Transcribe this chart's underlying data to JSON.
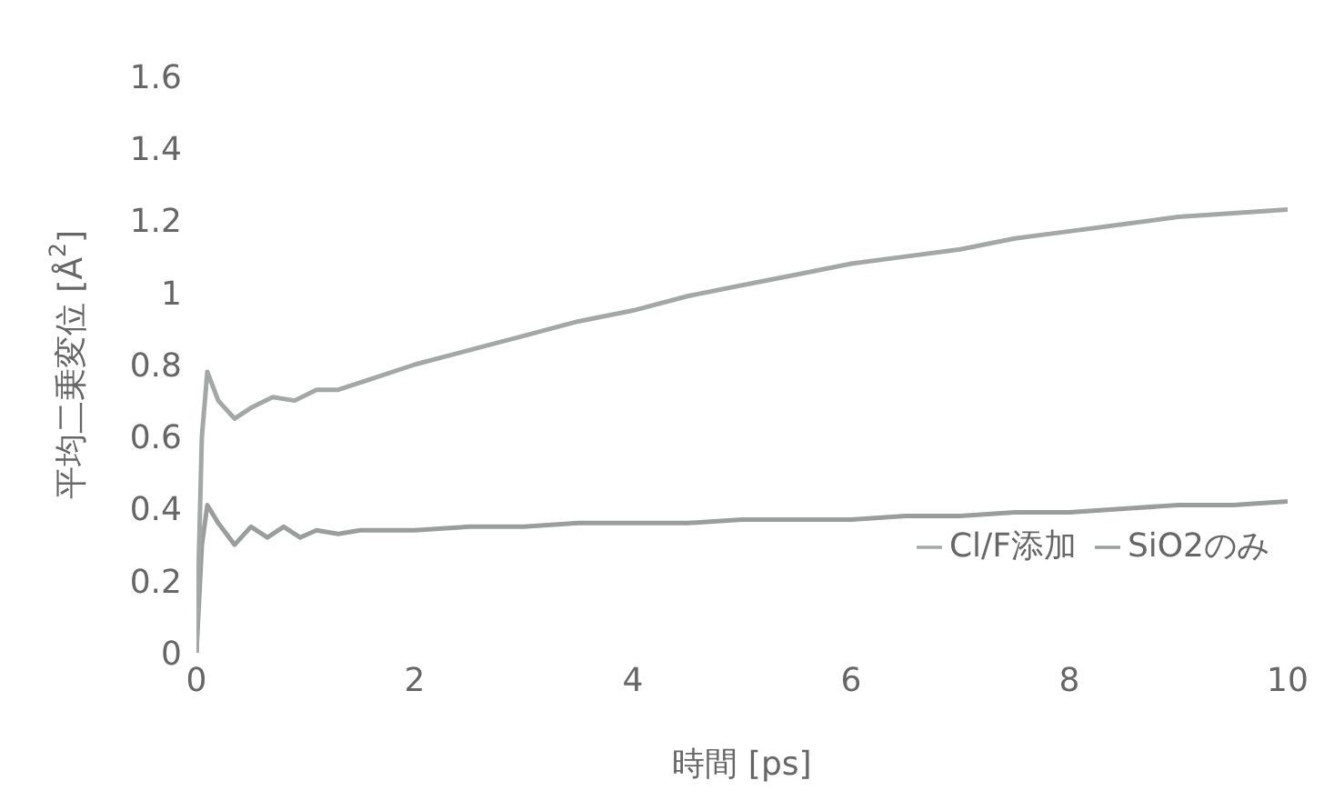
{
  "chart_data": {
    "type": "line",
    "xlabel": "時間 [ps]",
    "ylabel": "平均二乗変位 [Å$^{2}$]",
    "xlim": [
      0,
      10
    ],
    "xticks": [
      0,
      2,
      4,
      6,
      8,
      10
    ],
    "ylim": [
      0,
      1.6
    ],
    "yticks": [
      0,
      0.2,
      0.4,
      0.6,
      0.8,
      1,
      1.2,
      1.4,
      1.6
    ],
    "grid": false,
    "legend": "bottom right",
    "marker": "none",
    "line_style": "solid",
    "series": [
      {
        "name": "SiO2のみ",
        "color": "#999e9c",
        "x": [
          0,
          0.05,
          0.1,
          0.2,
          0.35,
          0.5,
          0.65,
          0.8,
          0.95,
          1.1,
          1.3,
          1.5,
          1.8,
          2,
          2.5,
          3,
          3.5,
          4,
          4.5,
          5,
          5.5,
          6,
          6.5,
          7,
          7.5,
          8,
          8.5,
          9,
          9.5,
          10
        ],
        "values": [
          0,
          0.3,
          0.41,
          0.36,
          0.3,
          0.35,
          0.32,
          0.35,
          0.32,
          0.34,
          0.33,
          0.34,
          0.34,
          0.34,
          0.35,
          0.35,
          0.36,
          0.36,
          0.36,
          0.37,
          0.37,
          0.37,
          0.38,
          0.38,
          0.39,
          0.39,
          0.4,
          0.41,
          0.41,
          0.42
        ]
      },
      {
        "name": "Cl/F添加",
        "color": "#a3a8a6",
        "x": [
          0,
          0.05,
          0.1,
          0.2,
          0.35,
          0.5,
          0.7,
          0.9,
          1.1,
          1.3,
          1.6,
          2,
          2.5,
          3,
          3.5,
          4,
          4.5,
          5,
          5.5,
          6,
          6.5,
          7,
          7.5,
          8,
          8.5,
          9,
          9.5,
          10
        ],
        "values": [
          0,
          0.6,
          0.78,
          0.7,
          0.65,
          0.68,
          0.71,
          0.7,
          0.73,
          0.73,
          0.76,
          0.8,
          0.84,
          0.88,
          0.92,
          0.95,
          0.99,
          1.02,
          1.05,
          1.08,
          1.1,
          1.12,
          1.15,
          1.17,
          1.19,
          1.21,
          1.22,
          1.23
        ]
      }
    ]
  }
}
